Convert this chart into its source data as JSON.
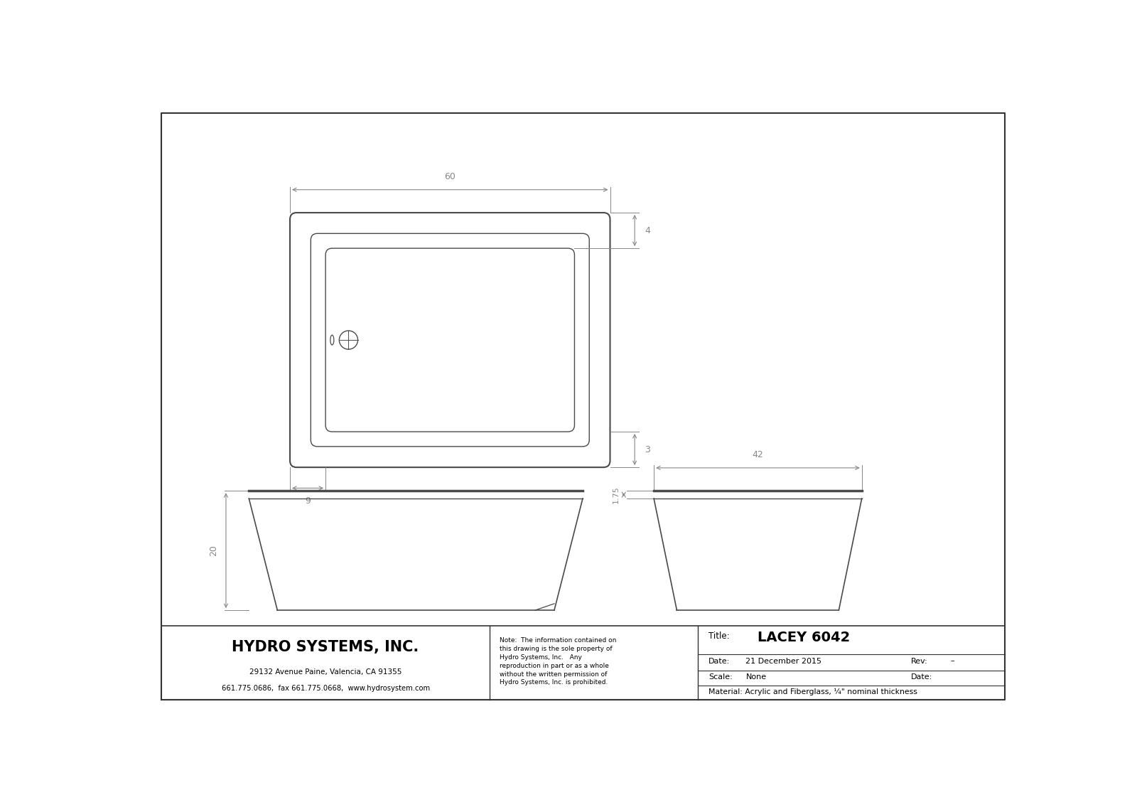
{
  "title": "LACEY 6042",
  "company_name": "HYDRO SYSTEMS, INC.",
  "company_address": "29132 Avenue Paine, Valencia, CA 91355",
  "company_contact": "661.775.0686,  fax 661.775.0668,  www.hydrosystem.com",
  "note_text": "Note:  The information contained on\nthis drawing is the sole property of\nHydro Systems, Inc.   Any\nreproduction in part or as a whole\nwithout the written permission of\nHydro Systems, Inc. is prohibited.",
  "field_title_label": "Title:",
  "field_date_label": "Date:",
  "field_date_value": "21 December 2015",
  "field_rev_label": "Rev:",
  "field_rev_value": "–",
  "field_scale_label": "Scale:",
  "field_scale_value": "None",
  "field_date2_label": "Date:",
  "field_material": "Material: Acrylic and Fiberglass, ¼\" nominal thickness",
  "dim_60": "60",
  "dim_4": "4",
  "dim_3": "3",
  "dim_9": "9",
  "dim_20": "20",
  "dim_175": "1.75",
  "dim_42": "42",
  "line_color": "#4a4a4a",
  "dim_color": "#888888",
  "bg_color": "#ffffff",
  "border_color": "#333333"
}
